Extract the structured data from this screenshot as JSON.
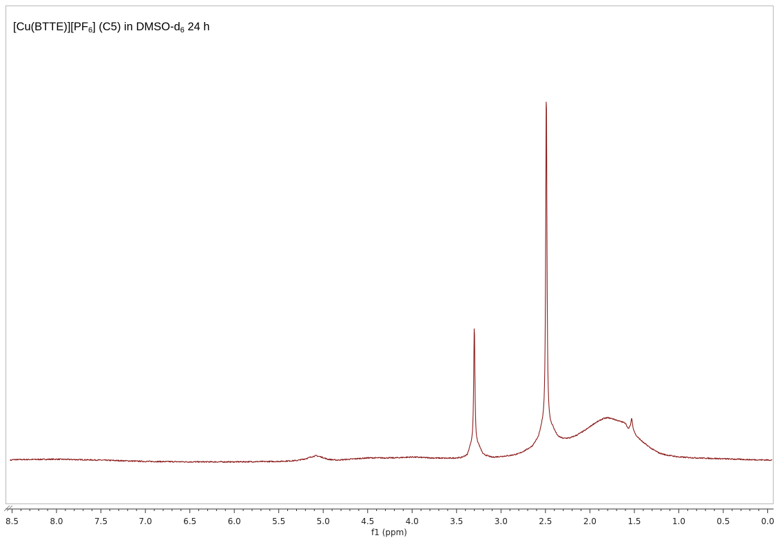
{
  "chart_data": {
    "type": "line",
    "title_parts": {
      "part1": "[Cu(BTTE)][PF",
      "sub1": "6",
      "part2": "] (C5) in DMSO-d",
      "sub2": "6",
      "part3": " 24 h"
    },
    "xlabel": "f1 (ppm)",
    "ylabel": "",
    "x_reversed": true,
    "xlim": [
      8.55,
      -0.05
    ],
    "ylim": [
      -0.05,
      1.0
    ],
    "grid": false,
    "x_ticks": [
      "8.5",
      "8.0",
      "7.5",
      "7.0",
      "6.5",
      "6.0",
      "5.5",
      "5.0",
      "4.5",
      "4.0",
      "3.5",
      "3.0",
      "2.5",
      "2.0",
      "1.5",
      "1.0",
      "0.5",
      "0.0"
    ],
    "series": [
      {
        "color": "#8b1a1a",
        "baseline": [
          [
            8.5,
            0.001
          ],
          [
            8.0,
            0.002
          ],
          [
            7.5,
            0.0
          ],
          [
            7.0,
            -0.003
          ],
          [
            6.5,
            -0.004
          ],
          [
            6.0,
            -0.004
          ],
          [
            5.5,
            -0.003
          ],
          [
            5.3,
            -0.001
          ],
          [
            5.2,
            0.003
          ],
          [
            5.12,
            0.008
          ],
          [
            5.08,
            0.01
          ],
          [
            5.02,
            0.007
          ],
          [
            4.95,
            0.002
          ],
          [
            4.85,
            0.0
          ],
          [
            4.7,
            0.002
          ],
          [
            4.5,
            0.005
          ],
          [
            4.2,
            0.005
          ],
          [
            4.0,
            0.007
          ],
          [
            3.8,
            0.005
          ],
          [
            3.6,
            0.004
          ],
          [
            3.45,
            0.005
          ],
          [
            3.38,
            0.01
          ],
          [
            3.34,
            0.03
          ],
          [
            3.25,
            0.03
          ],
          [
            3.2,
            0.012
          ],
          [
            3.1,
            0.006
          ],
          [
            3.0,
            0.008
          ],
          [
            2.9,
            0.01
          ],
          [
            2.8,
            0.014
          ],
          [
            2.72,
            0.022
          ],
          [
            2.65,
            0.03
          ],
          [
            2.58,
            0.048
          ],
          [
            2.54,
            0.07
          ],
          [
            2.42,
            0.07
          ],
          [
            2.36,
            0.052
          ],
          [
            2.3,
            0.048
          ],
          [
            2.22,
            0.05
          ],
          [
            2.15,
            0.056
          ],
          [
            2.05,
            0.068
          ],
          [
            1.95,
            0.083
          ],
          [
            1.85,
            0.094
          ],
          [
            1.8,
            0.096
          ],
          [
            1.75,
            0.094
          ],
          [
            1.65,
            0.087
          ],
          [
            1.6,
            0.084
          ],
          [
            1.57,
            0.07
          ],
          [
            1.53,
            0.075
          ],
          [
            1.48,
            0.055
          ],
          [
            1.4,
            0.04
          ],
          [
            1.3,
            0.025
          ],
          [
            1.22,
            0.016
          ],
          [
            1.15,
            0.012
          ],
          [
            1.0,
            0.007
          ],
          [
            0.8,
            0.005
          ],
          [
            0.5,
            0.003
          ],
          [
            0.2,
            0.001
          ],
          [
            -0.05,
            0.0
          ]
        ],
        "peaks": [
          {
            "x": 3.3,
            "height": 0.277,
            "width": 0.016
          },
          {
            "x": 2.49,
            "height": 0.778,
            "width": 0.016
          },
          {
            "x": 1.53,
            "height": 0.02,
            "width": 0.02
          }
        ]
      }
    ]
  }
}
